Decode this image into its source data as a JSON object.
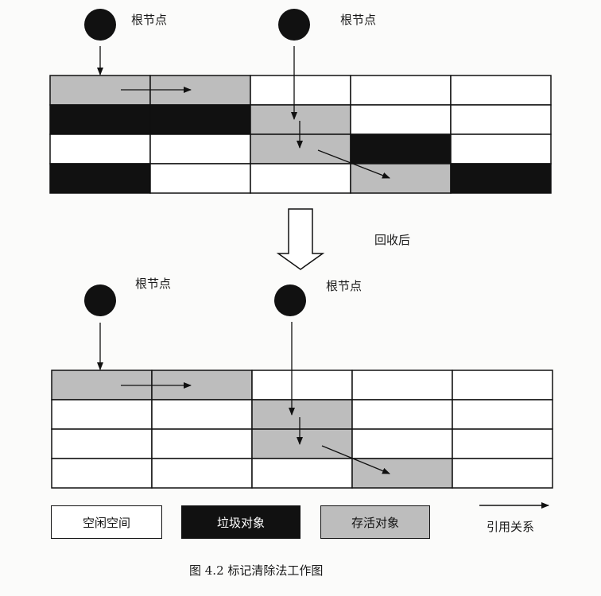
{
  "root_label": "根节点",
  "after_label": "回收后",
  "legend": {
    "free": "空闲空间",
    "garbage": "垃圾对象",
    "alive": "存活对象",
    "reference": "引用关系"
  },
  "caption": "图 4.2   标记清除法工作图",
  "colors": {
    "free": "#ffffff",
    "garbage": "#111111",
    "alive": "#bdbdbd",
    "line": "#111111"
  },
  "before_grid": [
    [
      "alive",
      "alive",
      "free",
      "free",
      "free"
    ],
    [
      "garbage",
      "garbage",
      "alive",
      "free",
      "free"
    ],
    [
      "free",
      "free",
      "alive",
      "garbage",
      "free"
    ],
    [
      "garbage",
      "free",
      "free",
      "alive",
      "garbage"
    ]
  ],
  "after_grid": [
    [
      "alive",
      "alive",
      "free",
      "free",
      "free"
    ],
    [
      "free",
      "free",
      "alive",
      "free",
      "free"
    ],
    [
      "free",
      "free",
      "alive",
      "free",
      "free"
    ],
    [
      "free",
      "free",
      "free",
      "alive",
      "free"
    ]
  ]
}
